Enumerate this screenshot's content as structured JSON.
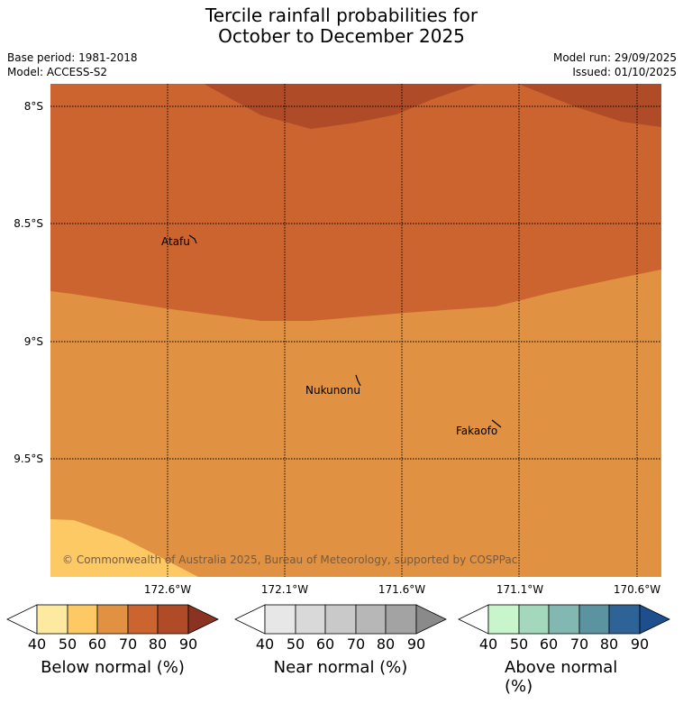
{
  "title_line1": "Tercile rainfall probabilities for",
  "title_line2": "October to December 2025",
  "base_period": "Base period: 1981-2018",
  "model": "Model: ACCESS-S2",
  "model_run": "Model run: 29/09/2025",
  "issued": "Issued: 01/10/2025",
  "lat_labels": [
    "8°S",
    "8.5°S",
    "9°S",
    "9.5°S"
  ],
  "lon_labels": [
    "172.6°W",
    "172.1°W",
    "171.6°W",
    "171.1°W",
    "170.6°W"
  ],
  "places": [
    "Atafu",
    "Nukunonu",
    "Fakaofo"
  ],
  "copyright": "© Commonwealth of Australia 2025, Bureau of Meteorology, supported by COSPPac",
  "colorbars": [
    {
      "label": "Below normal (%)",
      "ticks": [
        "40",
        "50",
        "60",
        "70",
        "80",
        "90"
      ],
      "colors": [
        "#ffffff",
        "#fdeaa0",
        "#fdc964",
        "#e09142",
        "#cc6430",
        "#b04b27",
        "#8b3322"
      ]
    },
    {
      "label": "Near normal (%)",
      "ticks": [
        "40",
        "50",
        "60",
        "70",
        "80",
        "90"
      ],
      "colors": [
        "#ffffff",
        "#e7e7e7",
        "#d9d9d9",
        "#c9c9c9",
        "#b7b7b7",
        "#a3a3a3",
        "#8a8a8a"
      ]
    },
    {
      "label": "Above normal (%)",
      "ticks": [
        "40",
        "50",
        "60",
        "70",
        "80",
        "90"
      ],
      "colors": [
        "#ffffff",
        "#c8f5cb",
        "#a3d8bd",
        "#82b8b1",
        "#5b93a0",
        "#2d6396",
        "#1d4f8f"
      ]
    }
  ],
  "region_colors": {
    "below_80": "#b04b27",
    "below_70": "#cc6430",
    "below_60": "#e09142",
    "below_50": "#fdc964"
  }
}
